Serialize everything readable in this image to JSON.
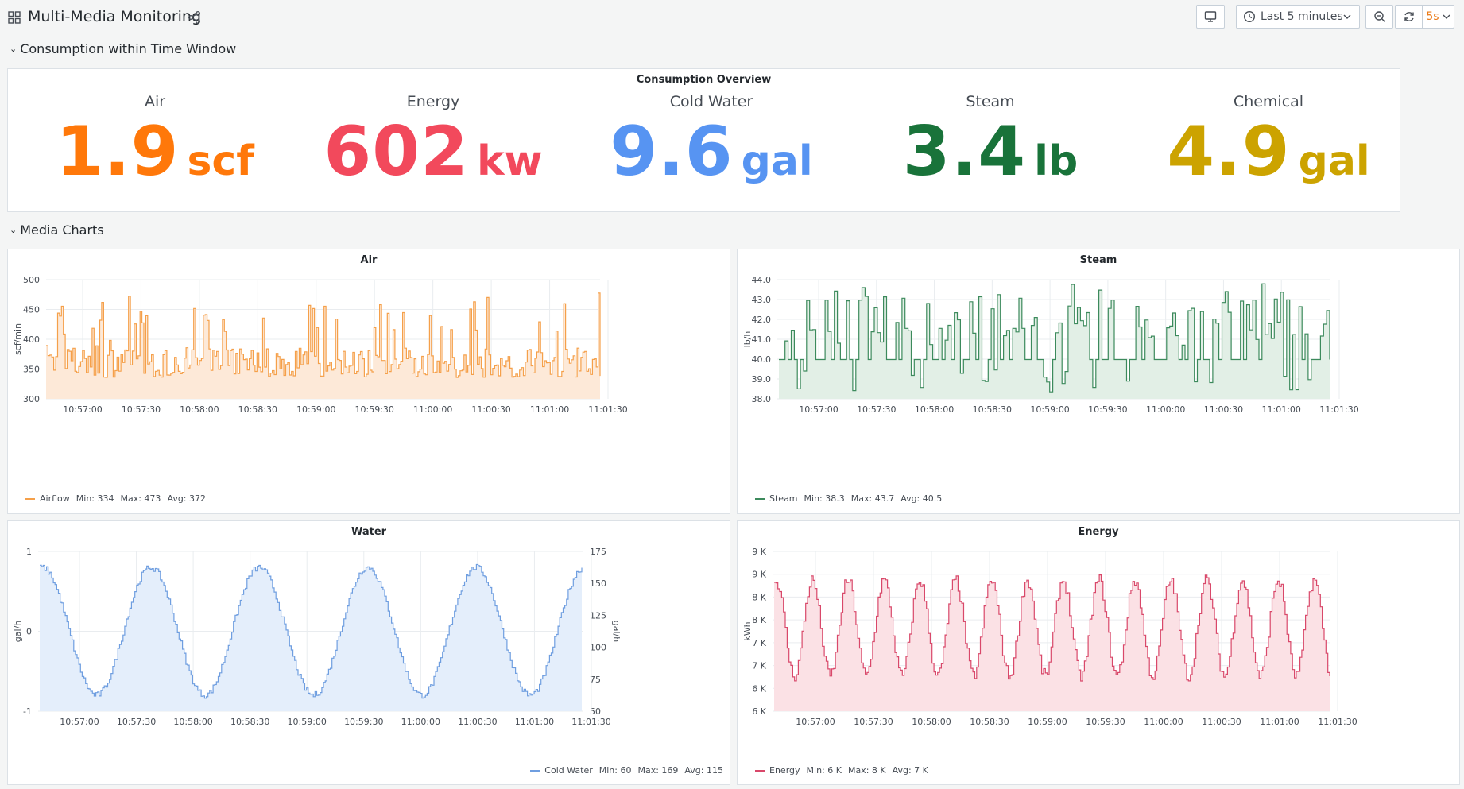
{
  "header": {
    "title": "Multi-Media Monitoring",
    "time_range": "Last 5 minutes",
    "refresh_interval": "5s"
  },
  "rows": [
    {
      "title": "Consumption within Time Window"
    },
    {
      "title": "Media Charts"
    }
  ],
  "overview": {
    "title": "Consumption Overview",
    "stats": [
      {
        "name": "Air",
        "value": "1.9",
        "unit": "scf",
        "color": "#ff780a"
      },
      {
        "name": "Energy",
        "value": "602",
        "unit": "kw",
        "color": "#f2495c"
      },
      {
        "name": "Cold Water",
        "value": "9.6",
        "unit": "gal",
        "color": "#5794f2"
      },
      {
        "name": "Steam",
        "value": "3.4",
        "unit": "lb",
        "color": "#19733a"
      },
      {
        "name": "Chemical",
        "value": "4.9",
        "unit": "gal",
        "color": "#cca300"
      }
    ]
  },
  "charts": {
    "air": {
      "title": "Air",
      "ylabel": "scf/min",
      "color": "#f5a04a",
      "fill": "#fde9d8",
      "legend": {
        "series": "Airflow",
        "min": "Min: 334",
        "max": "Max: 473",
        "avg": "Avg: 372"
      }
    },
    "steam": {
      "title": "Steam",
      "ylabel": "lb/h",
      "color": "#3c8a5c",
      "fill": "#e2efe6",
      "legend": {
        "series": "Steam",
        "min": "Min: 38.3",
        "max": "Max: 43.7",
        "avg": "Avg: 40.5"
      }
    },
    "water": {
      "title": "Water",
      "ylabel": "gal/h",
      "ylabel_right": "gal/h",
      "color": "#6f9ee0",
      "fill": "#e4eefb",
      "legend": {
        "series": "Cold Water",
        "min": "Min: 60",
        "max": "Max: 169",
        "avg": "Avg: 115"
      }
    },
    "energy": {
      "title": "Energy",
      "ylabel": "kWh",
      "color": "#d9486a",
      "fill": "#fbe1e5",
      "legend": {
        "series": "Energy",
        "min": "Min: 6 K",
        "max": "Max: 8 K",
        "avg": "Avg: 7 K"
      }
    }
  },
  "chart_data": [
    {
      "type": "line",
      "title": "Air",
      "ylabel": "scf/min",
      "x": [
        "10:57:00",
        "10:57:30",
        "10:58:00",
        "10:58:30",
        "10:59:00",
        "10:59:30",
        "11:00:00",
        "11:00:30",
        "11:01:00",
        "11:01:30"
      ],
      "yticks": [
        "500",
        "450",
        "400",
        "350",
        "300"
      ],
      "ylim": [
        300,
        500
      ],
      "series": [
        {
          "name": "Airflow",
          "min": 334,
          "max": 473,
          "avg": 372
        }
      ]
    },
    {
      "type": "line",
      "title": "Steam",
      "ylabel": "lb/h",
      "x": [
        "10:57:00",
        "10:57:30",
        "10:58:00",
        "10:58:30",
        "10:59:00",
        "10:59:30",
        "11:00:00",
        "11:00:30",
        "11:01:00",
        "11:01:30"
      ],
      "yticks": [
        "44.0",
        "43.0",
        "42.0",
        "41.0",
        "40.0",
        "39.0",
        "38.0"
      ],
      "ylim": [
        38,
        44
      ],
      "series": [
        {
          "name": "Steam",
          "min": 38.3,
          "max": 43.7,
          "avg": 40.5
        }
      ]
    },
    {
      "type": "line",
      "title": "Water",
      "ylabel": "gal/h",
      "x": [
        "10:57:00",
        "10:57:30",
        "10:58:00",
        "10:58:30",
        "10:59:00",
        "10:59:30",
        "11:00:00",
        "11:00:30",
        "11:01:00",
        "11:01:30"
      ],
      "yticks": [
        "1",
        "0",
        "-1"
      ],
      "yticks_right": [
        "175",
        "150",
        "125",
        "100",
        "75",
        "50"
      ],
      "ylim": [
        50,
        175
      ],
      "series": [
        {
          "name": "Cold Water",
          "min": 60,
          "max": 169,
          "avg": 115
        }
      ]
    },
    {
      "type": "line",
      "title": "Energy",
      "ylabel": "kWh",
      "x": [
        "10:57:00",
        "10:57:30",
        "10:58:00",
        "10:58:30",
        "10:59:00",
        "10:59:30",
        "11:00:00",
        "11:00:30",
        "11:01:00",
        "11:01:30"
      ],
      "yticks": [
        "9 K",
        "9 K",
        "8 K",
        "8 K",
        "7 K",
        "7 K",
        "6 K",
        "6 K"
      ],
      "ylim": [
        6000,
        9000
      ],
      "series": [
        {
          "name": "Energy",
          "min": 6000,
          "max": 8000,
          "avg": 7000
        }
      ]
    }
  ]
}
